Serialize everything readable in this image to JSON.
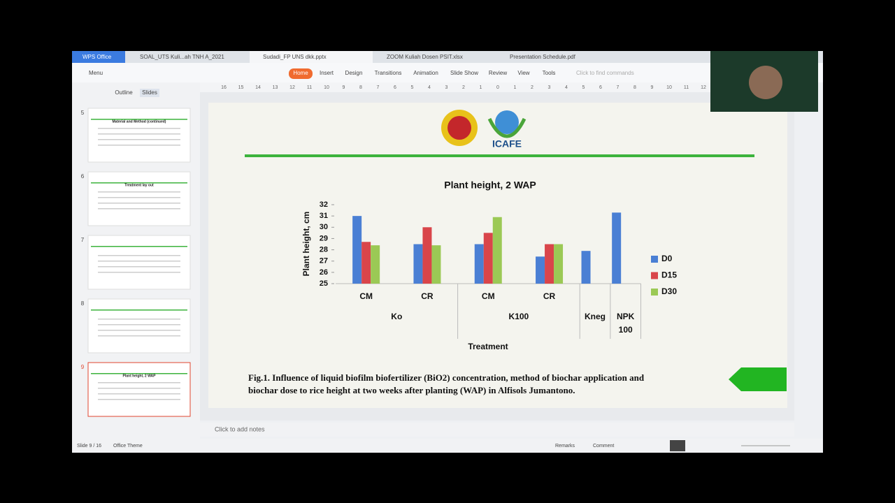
{
  "ui": {
    "tabs": [
      "WPS Office",
      "SOAL_UTS Kuli...ah TNH A_2021",
      "Sudadi_FP UNS dkk.pptx",
      "ZOOM Kuliah Dosen PSIT.xlsx",
      "Presentation Schedule.pdf"
    ],
    "menu": "Menu",
    "ribbon": [
      "Home",
      "Insert",
      "Design",
      "Transitions",
      "Animation",
      "Slide Show",
      "Review",
      "View",
      "Tools"
    ],
    "search": "Click to find commands",
    "panel_tabs": [
      "Outline",
      "Slides"
    ],
    "thumbnails": [
      {
        "number": 5,
        "title": "Material and Method (continued)"
      },
      {
        "number": 6,
        "title": "Treatment lay out"
      },
      {
        "number": 7,
        "title": null
      },
      {
        "number": 8,
        "title": null
      },
      {
        "number": 9,
        "title": "Plant height, 2 WAP"
      }
    ],
    "ruler": [
      16,
      15,
      14,
      13,
      12,
      11,
      10,
      9,
      8,
      7,
      6,
      5,
      4,
      3,
      2,
      1,
      0,
      1,
      2,
      3,
      4,
      5,
      6,
      7,
      8,
      9,
      10,
      11,
      12
    ],
    "notes": "Click to add notes",
    "status": [
      "Slide 9 / 16",
      "Office Theme"
    ],
    "status_right": [
      "Remarks",
      "Comment"
    ]
  },
  "slide": {
    "logo_text": "ICAFE",
    "caption": "Fig.1. Influence of liquid biofilm biofertilizer (BiO2) concentration, method of biochar application and biochar dose to rice height at two weeks after planting (WAP) in Alfisols Jumantono."
  },
  "chart_data": {
    "type": "bar",
    "title": "Plant height, 2 WAP",
    "y_label": "Plant height, cm",
    "x_label": "Treatment",
    "categories": [
      "CM",
      "CR",
      "CM",
      "CR",
      "Kneg",
      "NPK 100"
    ],
    "groups": [
      "Ko",
      "Ko",
      "K100",
      "K100",
      null,
      null
    ],
    "series": [
      {
        "name": "D0",
        "color": "#4a7fd4",
        "values": [
          31.0,
          28.5,
          28.5,
          27.4,
          27.9,
          31.3
        ]
      },
      {
        "name": "D15",
        "color": "#d9454a",
        "values": [
          28.7,
          30.0,
          29.5,
          28.5,
          null,
          null
        ]
      },
      {
        "name": "D30",
        "color": "#9bc955",
        "values": [
          28.4,
          28.4,
          30.9,
          28.5,
          null,
          null
        ]
      }
    ],
    "ylim": [
      25,
      32
    ],
    "yticks": [
      25,
      26,
      27,
      28,
      29,
      30,
      31,
      32
    ],
    "legend": "right"
  }
}
